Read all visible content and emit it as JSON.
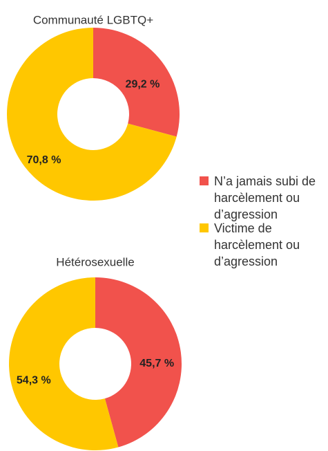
{
  "chart_data": [
    {
      "type": "pie",
      "donut": true,
      "title": "Communauté LGBTQ+",
      "categories": [
        "N’a jamais subi de harcèlement ou d’agression",
        "Victime de harcèlement ou d’agression"
      ],
      "values": [
        29.2,
        70.8
      ],
      "value_labels": [
        "29,2 %",
        "70,8 %"
      ],
      "colors": [
        "#f1524c",
        "#ffc700"
      ]
    },
    {
      "type": "pie",
      "donut": true,
      "title": "Hétérosexuelle",
      "categories": [
        "N’a jamais subi de harcèlement ou d’agression",
        "Victime de harcèlement ou d’agression"
      ],
      "values": [
        45.7,
        54.3
      ],
      "value_labels": [
        "45,7 %",
        "54,3 %"
      ],
      "colors": [
        "#f1524c",
        "#ffc700"
      ]
    }
  ]
}
